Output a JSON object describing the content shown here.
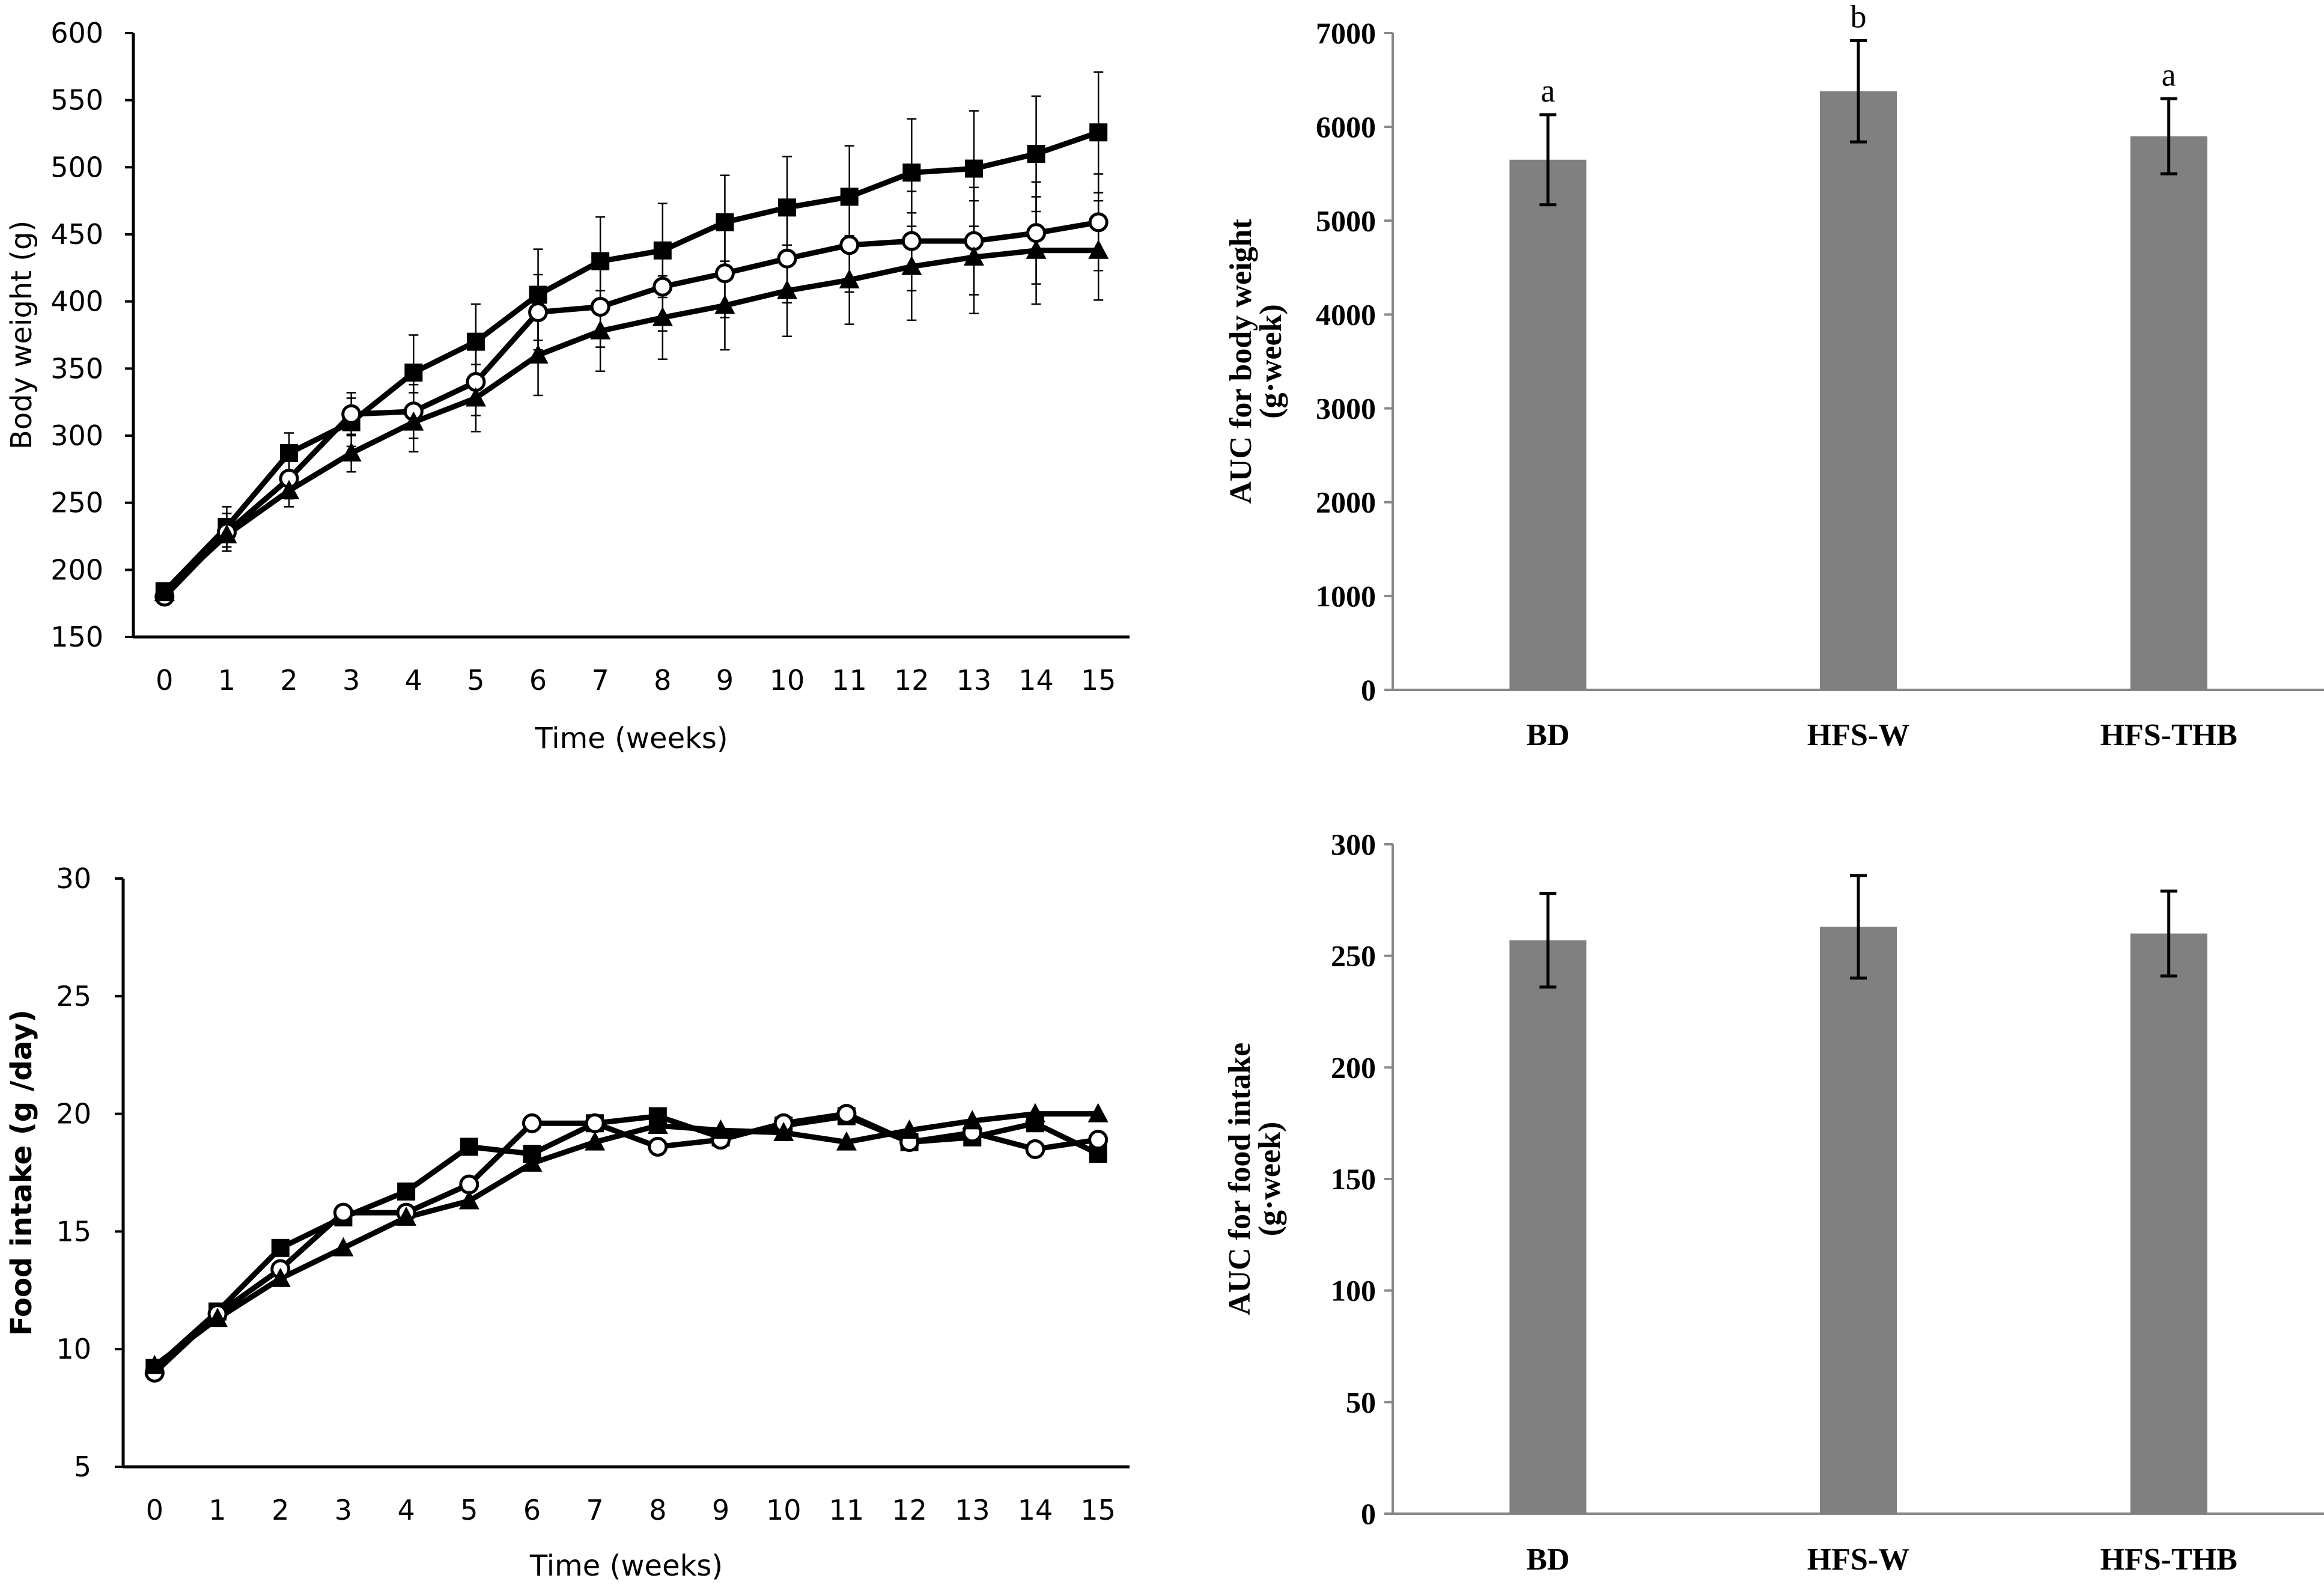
{
  "chart_data": [
    {
      "id": "body-weight-line",
      "type": "line",
      "title": "",
      "xlabel": "Time (weeks)",
      "ylabel": "Body weight (g)",
      "ylim": [
        150,
        600
      ],
      "yticks": [
        150,
        200,
        250,
        300,
        350,
        400,
        450,
        500,
        550,
        600
      ],
      "x": [
        0,
        1,
        2,
        3,
        4,
        5,
        6,
        7,
        8,
        9,
        10,
        11,
        12,
        13,
        14,
        15
      ],
      "series": [
        {
          "name": "square",
          "marker": "square",
          "values": [
            184,
            232,
            287,
            310,
            347,
            370,
            405,
            430,
            438,
            459,
            470,
            478,
            496,
            499,
            510,
            526
          ],
          "errors": [
            4,
            15,
            15,
            18,
            28,
            28,
            34,
            33,
            35,
            35,
            38,
            38,
            40,
            43,
            43,
            45
          ]
        },
        {
          "name": "circle",
          "marker": "circle",
          "values": [
            180,
            228,
            268,
            316,
            318,
            340,
            392,
            396,
            411,
            421,
            432,
            442,
            445,
            445,
            451,
            459
          ],
          "errors": [
            4,
            14,
            15,
            16,
            20,
            25,
            28,
            30,
            33,
            33,
            33,
            35,
            37,
            40,
            38,
            36
          ]
        },
        {
          "name": "triangle",
          "marker": "triangle",
          "values": [
            183,
            226,
            259,
            287,
            310,
            328,
            360,
            378,
            388,
            397,
            408,
            416,
            426,
            433,
            438,
            438
          ],
          "errors": [
            4,
            12,
            12,
            14,
            22,
            25,
            30,
            30,
            31,
            33,
            34,
            33,
            40,
            42,
            40,
            37
          ]
        }
      ]
    },
    {
      "id": "auc-body-weight-bar",
      "type": "bar",
      "title": "",
      "xlabel": "",
      "ylabel": [
        "AUC for body weight",
        "(g·week)"
      ],
      "ylim": [
        0,
        7000
      ],
      "yticks": [
        0,
        1000,
        2000,
        3000,
        4000,
        5000,
        6000,
        7000
      ],
      "categories": [
        "BD",
        "HFS-W",
        "HFS-THB"
      ],
      "values": [
        5650,
        6380,
        5900
      ],
      "errors": [
        480,
        540,
        400
      ],
      "letters": [
        "a",
        "b",
        "a"
      ]
    },
    {
      "id": "food-intake-line",
      "type": "line",
      "title": "",
      "xlabel": "Time (weeks)",
      "ylabel": "Food intake (g /day)",
      "ylim": [
        5,
        30
      ],
      "yticks": [
        5,
        10,
        15,
        20,
        25,
        30
      ],
      "x": [
        0,
        1,
        2,
        3,
        4,
        5,
        6,
        7,
        8,
        9,
        10,
        11,
        12,
        13,
        14,
        15
      ],
      "series": [
        {
          "name": "square",
          "marker": "square",
          "values": [
            9.2,
            11.6,
            14.3,
            15.6,
            16.7,
            18.6,
            18.3,
            19.6,
            19.9,
            19.0,
            19.5,
            19.9,
            18.8,
            19.0,
            19.6,
            18.3
          ]
        },
        {
          "name": "circle",
          "marker": "circle",
          "values": [
            9.0,
            11.5,
            13.4,
            15.8,
            15.8,
            17.0,
            19.6,
            19.6,
            18.6,
            18.9,
            19.6,
            20.0,
            18.8,
            19.2,
            18.5,
            18.9
          ]
        },
        {
          "name": "triangle",
          "marker": "triangle",
          "values": [
            9.3,
            11.3,
            13.0,
            14.3,
            15.6,
            16.3,
            17.9,
            18.8,
            19.5,
            19.3,
            19.2,
            18.8,
            19.3,
            19.7,
            20.0,
            20.0
          ]
        }
      ]
    },
    {
      "id": "auc-food-intake-bar",
      "type": "bar",
      "title": "",
      "xlabel": "",
      "ylabel": [
        "AUC for food intake",
        "(g·week)"
      ],
      "ylim": [
        0,
        300
      ],
      "yticks": [
        0,
        50,
        100,
        150,
        200,
        250,
        300
      ],
      "categories": [
        "BD",
        "HFS-W",
        "HFS-THB"
      ],
      "values": [
        257,
        263,
        260
      ],
      "errors": [
        21,
        23,
        19
      ]
    }
  ]
}
